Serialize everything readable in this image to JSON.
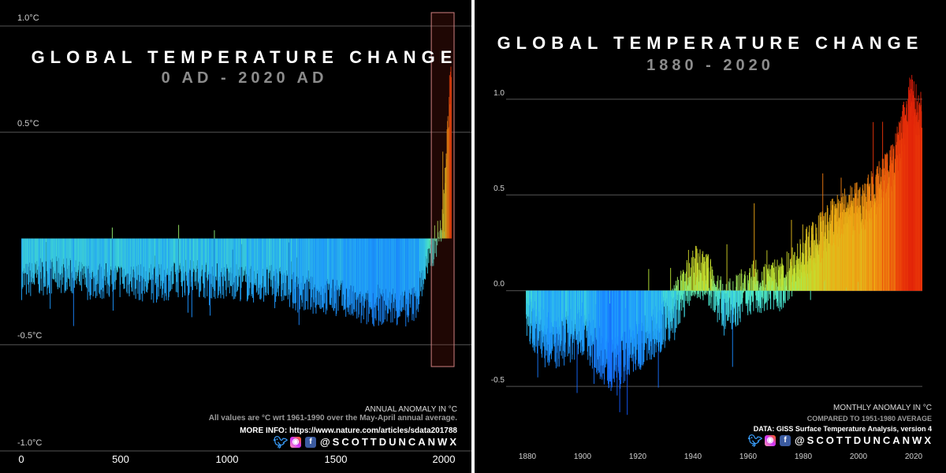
{
  "left": {
    "title": "GLOBAL TEMPERATURE CHANGE",
    "subtitle": "0 AD - 2020 AD",
    "note_anomaly": "ANNUAL ANOMALY IN °C",
    "note_reference": "All values are °C wrt 1961-1990 over the May-April annual average.",
    "note_more_info": "MORE INFO: https://www.nature.com/articles/sdata201788",
    "handle": "@SCOTTDUNCANWX"
  },
  "right": {
    "title": "GLOBAL TEMPERATURE CHANGE",
    "subtitle": "1880 - 2020",
    "note_anomaly": "MONTHLY ANOMALY IN °C",
    "note_reference": "COMPARED TO 1951-1980 AVERAGE",
    "note_data": "DATA: GISS Surface Temperature Analysis, version 4",
    "handle": "@SCOTTDUNCANWX"
  },
  "social_icons": [
    "twitter-icon",
    "instagram-icon",
    "facebook-icon"
  ],
  "colors": {
    "background": "#000000",
    "cold": "#1e78ff",
    "neutral": "#5cf5c0",
    "warm_yellow": "#c8e632",
    "hot": "#e61e0a",
    "highlight_box": "#d08080"
  },
  "chart_data": [
    {
      "type": "bar",
      "title": "GLOBAL TEMPERATURE CHANGE",
      "subtitle": "0 AD - 2020 AD",
      "xlabel": "",
      "ylabel": "ANNUAL ANOMALY IN °C",
      "x_range": [
        0,
        2020
      ],
      "ylim": [
        -1.0,
        1.0
      ],
      "baseline": 0.0,
      "y_ticks": [
        "1.0°C",
        "0.5°C",
        "-0.5°C",
        "-1.0°C"
      ],
      "y_tick_values": [
        1.0,
        0.5,
        -0.5,
        -1.0
      ],
      "x_ticks": [
        "0",
        "500",
        "1000",
        "1500",
        "2000"
      ],
      "x_tick_values": [
        0,
        500,
        1000,
        1500,
        2000
      ],
      "grid": true,
      "highlight_range": [
        1950,
        2020
      ],
      "series": [
        {
          "anchor_x": [
            0,
            100,
            200,
            300,
            400,
            500,
            600,
            700,
            800,
            900,
            1000,
            1100,
            1200,
            1300,
            1400,
            1500,
            1600,
            1700,
            1800,
            1850,
            1900,
            1950,
            1970,
            1990,
            2000,
            2010,
            2020
          ],
          "anchor_y": [
            -0.2,
            -0.18,
            -0.17,
            -0.2,
            -0.2,
            -0.19,
            -0.22,
            -0.2,
            -0.18,
            -0.2,
            -0.2,
            -0.22,
            -0.21,
            -0.26,
            -0.27,
            -0.28,
            -0.33,
            -0.32,
            -0.33,
            -0.3,
            -0.15,
            0.0,
            0.02,
            0.3,
            0.45,
            0.65,
            0.82
          ]
        }
      ]
    },
    {
      "type": "bar",
      "title": "GLOBAL TEMPERATURE CHANGE",
      "subtitle": "1880 - 2020",
      "xlabel": "",
      "ylabel": "MONTHLY ANOMALY IN °C",
      "x_range": [
        1880,
        2020
      ],
      "ylim": [
        -0.8,
        1.3
      ],
      "baseline": 0.0,
      "y_ticks": [
        "1.0",
        "0.5",
        "0.0",
        "-0.5"
      ],
      "y_tick_values": [
        1.0,
        0.5,
        0.0,
        -0.5
      ],
      "x_ticks": [
        "1880",
        "1900",
        "1920",
        "1940",
        "1960",
        "1980",
        "2000",
        "2020"
      ],
      "x_tick_values": [
        1880,
        1900,
        1920,
        1940,
        1960,
        1980,
        2000,
        2020
      ],
      "grid": true,
      "series": [
        {
          "anchor_x": [
            1880,
            1890,
            1900,
            1910,
            1920,
            1930,
            1940,
            1945,
            1950,
            1960,
            1970,
            1980,
            1990,
            2000,
            2010,
            2016,
            2020
          ],
          "anchor_y": [
            -0.15,
            -0.28,
            -0.2,
            -0.4,
            -0.28,
            -0.15,
            0.1,
            0.05,
            -0.1,
            0.02,
            0.03,
            0.2,
            0.38,
            0.45,
            0.65,
            1.0,
            0.9
          ]
        }
      ]
    }
  ]
}
